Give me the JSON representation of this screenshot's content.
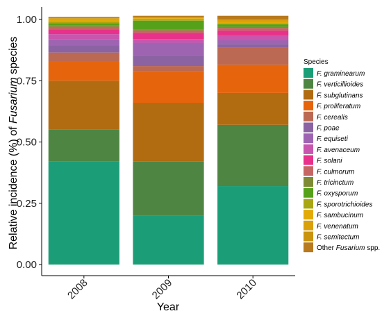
{
  "chart_data": {
    "type": "bar",
    "stacked": true,
    "categories": [
      "2008",
      "2009",
      "2010"
    ],
    "xlabel": "Year",
    "ylabel_prefix": "Relative incidence (%) of ",
    "ylabel_italic": "Fusarium",
    "ylabel_suffix": " species",
    "ylim": [
      0,
      1
    ],
    "yticks": [
      "0.00",
      "0.25",
      "0.50",
      "0.75",
      "1.00"
    ],
    "grid": false,
    "legend": {
      "title": "Species",
      "position": "right"
    },
    "series": [
      {
        "name": "F. graminearum",
        "color": "#1B9E77",
        "values": [
          0.42,
          0.2,
          0.32
        ]
      },
      {
        "name": "F. verticillioides",
        "color": "#4E8543",
        "values": [
          0.13,
          0.22,
          0.25
        ]
      },
      {
        "name": "F. subglutinans",
        "color": "#B16B11",
        "values": [
          0.2,
          0.24,
          0.13
        ]
      },
      {
        "name": "F. proliferatum",
        "color": "#E6640C",
        "values": [
          0.08,
          0.13,
          0.115
        ]
      },
      {
        "name": "F. cerealis",
        "color": "#BB6952",
        "values": [
          0.035,
          0.02,
          0.07
        ]
      },
      {
        "name": "F. poae",
        "color": "#8C63A2",
        "values": [
          0.03,
          0.045,
          0.015
        ]
      },
      {
        "name": "F. equiseti",
        "color": "#9E64B2",
        "values": [
          0.025,
          0.05,
          0.015
        ]
      },
      {
        "name": "F. avenaceum",
        "color": "#C855AE",
        "values": [
          0.02,
          0.015,
          0.02
        ]
      },
      {
        "name": "F. solani",
        "color": "#E8318A",
        "values": [
          0.02,
          0.025,
          0.02
        ]
      },
      {
        "name": "F. culmorum",
        "color": "#C56664",
        "values": [
          0.01,
          0.01,
          0.01
        ]
      },
      {
        "name": "F. tricinctum",
        "color": "#7E8B34",
        "values": [
          0.005,
          0.005,
          0.005
        ]
      },
      {
        "name": "F. oxysporum",
        "color": "#55A21A",
        "values": [
          0.01,
          0.035,
          0.01
        ]
      },
      {
        "name": "F. sporotrichioides",
        "color": "#A8A613",
        "values": [
          0.005,
          0.005,
          0.005
        ]
      },
      {
        "name": "F. sambucinum",
        "color": "#E2AA06",
        "values": [
          0.01,
          0.005,
          0.005
        ]
      },
      {
        "name": "F. venenatum",
        "color": "#D9A00B",
        "values": [
          0.005,
          0.005,
          0.01
        ]
      },
      {
        "name": "F. semitectum",
        "color": "#C9930D",
        "values": [
          0.0,
          0.0,
          0.0
        ]
      },
      {
        "name": "Other Fusarium spp.",
        "color": "#B87A1C",
        "values": [
          0.005,
          0.005,
          0.015
        ]
      }
    ]
  }
}
